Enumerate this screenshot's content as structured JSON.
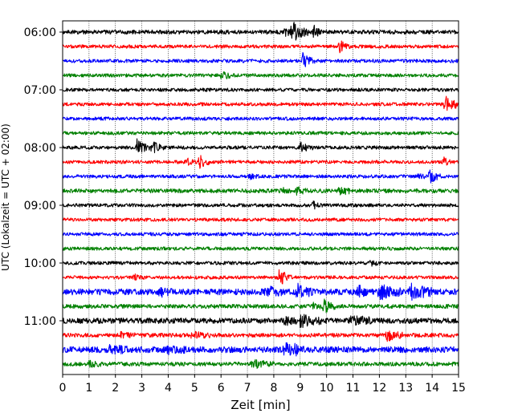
{
  "chart_data": {
    "type": "line",
    "title": "",
    "xlabel": "Zeit  [min]",
    "ylabel": "UTC (Lokalzeit = UTC + 02:00)",
    "xlim": [
      0,
      15
    ],
    "x_ticks": [
      "0",
      "1",
      "2",
      "3",
      "4",
      "5",
      "6",
      "7",
      "8",
      "9",
      "10",
      "11",
      "12",
      "13",
      "14",
      "15"
    ],
    "y_tick_labels": [
      "06:00",
      "07:00",
      "08:00",
      "09:00",
      "10:00",
      "11:00"
    ],
    "grid": "vertical dotted lines at each minute",
    "colors": [
      "#000000",
      "#ff0000",
      "#0000ff",
      "#008000"
    ],
    "series": [
      {
        "time": "06:00",
        "color": "#000000",
        "noise": 0.6,
        "events": [
          [
            8.7,
            2.6,
            0.3
          ],
          [
            9.5,
            2.0,
            0.1
          ],
          [
            8.4,
            1.0,
            0.2
          ]
        ]
      },
      {
        "time": "06:15",
        "color": "#ff0000",
        "noise": 0.5,
        "events": [
          [
            10.5,
            2.0,
            0.1
          ]
        ]
      },
      {
        "time": "06:30",
        "color": "#0000ff",
        "noise": 0.5,
        "events": [
          [
            9.1,
            2.0,
            0.2
          ]
        ]
      },
      {
        "time": "06:45",
        "color": "#008000",
        "noise": 0.5,
        "events": [
          [
            6.0,
            1.4,
            0.2
          ]
        ]
      },
      {
        "time": "07:00",
        "color": "#000000",
        "noise": 0.5,
        "events": []
      },
      {
        "time": "07:15",
        "color": "#ff0000",
        "noise": 0.5,
        "events": [
          [
            14.5,
            2.3,
            0.3
          ]
        ]
      },
      {
        "time": "07:30",
        "color": "#0000ff",
        "noise": 0.5,
        "events": []
      },
      {
        "time": "07:45",
        "color": "#008000",
        "noise": 0.5,
        "events": []
      },
      {
        "time": "08:00",
        "color": "#000000",
        "noise": 0.5,
        "events": [
          [
            2.8,
            2.3,
            0.2
          ],
          [
            3.4,
            2.0,
            0.15
          ],
          [
            9.0,
            1.3,
            0.2
          ]
        ]
      },
      {
        "time": "08:15",
        "color": "#ff0000",
        "noise": 0.5,
        "events": [
          [
            5.2,
            2.2,
            0.15
          ],
          [
            4.7,
            1.0,
            0.15
          ],
          [
            14.4,
            1.4,
            0.1
          ]
        ]
      },
      {
        "time": "08:30",
        "color": "#0000ff",
        "noise": 0.5,
        "events": [
          [
            13.9,
            1.8,
            0.2
          ],
          [
            13.5,
            1.0,
            0.1
          ],
          [
            7.1,
            0.6,
            0.1
          ]
        ]
      },
      {
        "time": "08:45",
        "color": "#008000",
        "noise": 0.6,
        "events": [
          [
            8.8,
            1.3,
            0.2
          ],
          [
            10.5,
            1.8,
            0.15
          ],
          [
            8.3,
            0.8,
            0.1
          ]
        ]
      },
      {
        "time": "09:00",
        "color": "#000000",
        "noise": 0.5,
        "events": [
          [
            9.5,
            1.0,
            0.1
          ]
        ]
      },
      {
        "time": "09:15",
        "color": "#ff0000",
        "noise": 0.5,
        "events": []
      },
      {
        "time": "09:30",
        "color": "#0000ff",
        "noise": 0.5,
        "events": []
      },
      {
        "time": "09:45",
        "color": "#008000",
        "noise": 0.5,
        "events": []
      },
      {
        "time": "10:00",
        "color": "#000000",
        "noise": 0.5,
        "events": [
          [
            11.7,
            0.8,
            0.1
          ]
        ]
      },
      {
        "time": "10:15",
        "color": "#ff0000",
        "noise": 0.5,
        "events": [
          [
            8.2,
            2.4,
            0.2
          ],
          [
            2.7,
            0.8,
            0.1
          ]
        ]
      },
      {
        "time": "10:30",
        "color": "#0000ff",
        "noise": 0.9,
        "events": [
          [
            7.6,
            1.6,
            0.4
          ],
          [
            8.9,
            1.8,
            0.3
          ],
          [
            11.2,
            1.6,
            0.2
          ],
          [
            12.0,
            2.0,
            0.5
          ],
          [
            13.2,
            1.8,
            0.6
          ],
          [
            3.7,
            1.0,
            0.2
          ]
        ]
      },
      {
        "time": "10:45",
        "color": "#008000",
        "noise": 0.6,
        "events": [
          [
            9.9,
            1.8,
            0.2
          ],
          [
            9.5,
            0.8,
            0.1
          ]
        ]
      },
      {
        "time": "11:00",
        "color": "#000000",
        "noise": 0.8,
        "events": [
          [
            9.0,
            1.8,
            0.5
          ],
          [
            10.9,
            1.5,
            0.5
          ],
          [
            8.4,
            0.9,
            0.3
          ]
        ]
      },
      {
        "time": "11:15",
        "color": "#ff0000",
        "noise": 0.6,
        "events": [
          [
            12.3,
            1.8,
            0.3
          ],
          [
            4.9,
            0.9,
            0.4
          ],
          [
            2.2,
            0.6,
            0.3
          ]
        ]
      },
      {
        "time": "11:30",
        "color": "#0000ff",
        "noise": 0.9,
        "events": [
          [
            8.4,
            2.0,
            0.2
          ],
          [
            8.8,
            1.0,
            0.1
          ],
          [
            1.7,
            1.0,
            0.5
          ],
          [
            4.0,
            0.8,
            0.5
          ]
        ]
      },
      {
        "time": "11:45",
        "color": "#008000",
        "noise": 0.6,
        "events": [
          [
            7.2,
            1.0,
            0.5
          ],
          [
            1.0,
            0.6,
            0.3
          ]
        ]
      }
    ]
  }
}
